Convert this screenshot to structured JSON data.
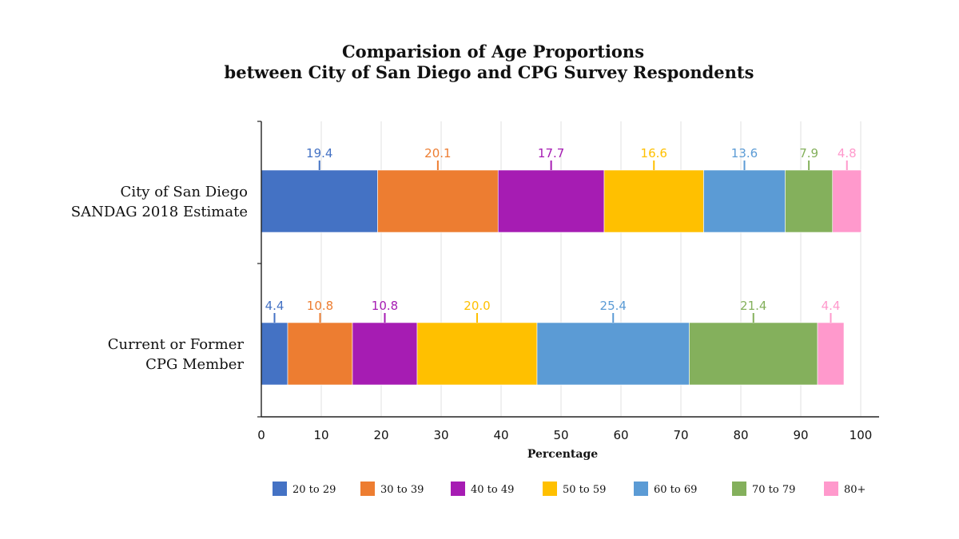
{
  "chart_data": {
    "type": "bar",
    "orientation": "horizontal",
    "stacked": true,
    "title_lines": [
      "Comparision of Age Proportions",
      "between City of San Diego and CPG Survey Respondents"
    ],
    "categories": [
      {
        "lines": [
          "City of San Diego",
          "SANDAG 2018 Estimate"
        ]
      },
      {
        "lines": [
          "Current or Former",
          "CPG Member"
        ]
      }
    ],
    "series": [
      {
        "name": "20 to 29",
        "color": "#4472C4",
        "values": [
          19.4,
          4.4
        ]
      },
      {
        "name": "30 to 39",
        "color": "#ED7D31",
        "values": [
          20.1,
          10.8
        ]
      },
      {
        "name": "40 to 49",
        "color": "#A61CB3",
        "values": [
          17.7,
          10.8
        ]
      },
      {
        "name": "50 to 59",
        "color": "#FFC000",
        "values": [
          16.6,
          20.0
        ]
      },
      {
        "name": "60 to 69",
        "color": "#5B9BD5",
        "values": [
          13.6,
          25.4
        ]
      },
      {
        "name": "70 to 79",
        "color": "#84B05C",
        "values": [
          7.9,
          21.4
        ]
      },
      {
        "name": "80+",
        "color": "#FF99CC",
        "values": [
          4.8,
          4.4
        ]
      }
    ],
    "value_labels": [
      [
        "19.4",
        "20.1",
        "17.7",
        "16.6",
        "13.6",
        "7.9",
        "4.8"
      ],
      [
        "4.4",
        "10.8",
        "10.8",
        "20.0",
        "25.4",
        "21.4",
        "4.4"
      ]
    ],
    "xlabel": "Percentage",
    "ylabel": "",
    "xlim": [
      0,
      100
    ],
    "xticks": [
      0,
      10,
      20,
      30,
      40,
      50,
      60,
      70,
      80,
      90,
      100
    ],
    "grid": "vertical",
    "legend_position": "bottom"
  }
}
